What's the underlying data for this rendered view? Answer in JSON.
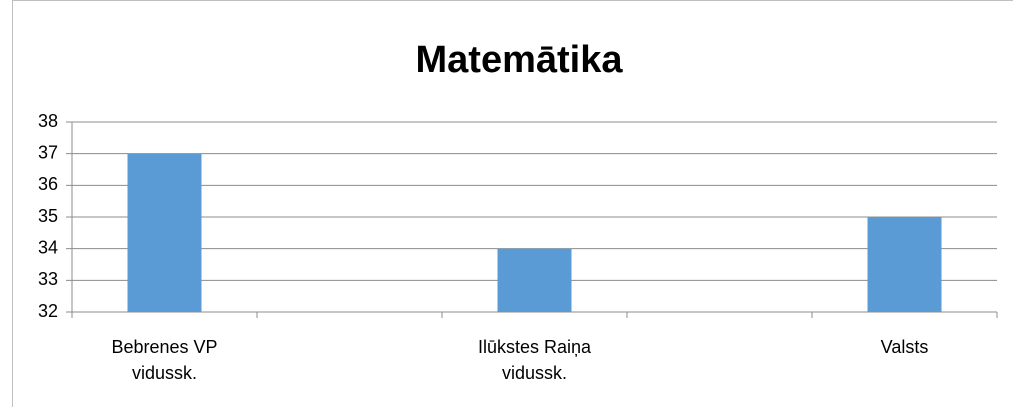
{
  "chart_data": {
    "type": "bar",
    "title": "Matemātika",
    "categories": [
      "Bebrenes VP vidussk.",
      null,
      "Ilūkstes Raiņa vidussk.",
      null,
      "Valsts"
    ],
    "values": [
      37,
      null,
      34,
      null,
      35
    ],
    "color": "#5b9bd5",
    "ylim": [
      32,
      38
    ],
    "yticks": [
      32,
      33,
      34,
      35,
      36,
      37,
      38
    ],
    "grid": true
  }
}
